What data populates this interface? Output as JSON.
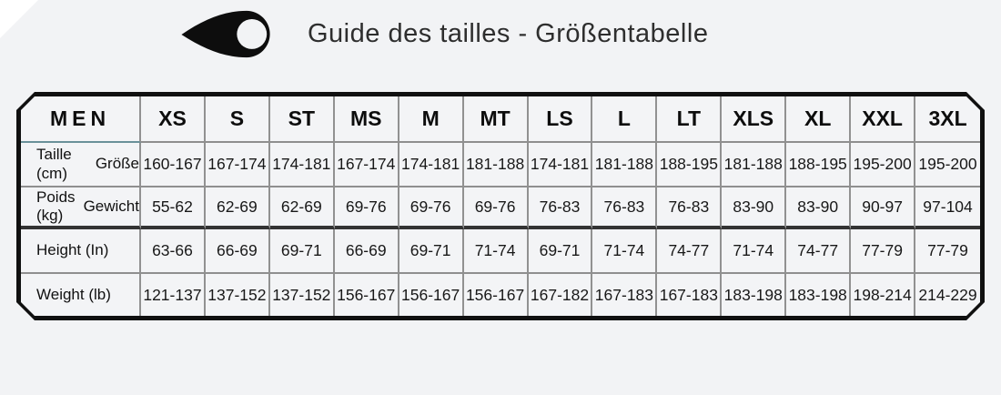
{
  "header": {
    "title": "Guide des tailles - Größentabelle",
    "logo_icon": "teardrop-comet-logo"
  },
  "colors": {
    "page_background": "#f2f3f5",
    "accent_teal": "#15545f",
    "frame_black": "#101010",
    "grid_gray": "#8f8f8f",
    "thick_divider": "#333333"
  },
  "table": {
    "group_label": "MEN",
    "columns": [
      "XS",
      "S",
      "ST",
      "MS",
      "M",
      "MT",
      "LS",
      "L",
      "LT",
      "XLS",
      "XL",
      "XXL",
      "3XL"
    ],
    "rows": [
      {
        "label_lines": [
          "Taille (cm)",
          "Größe"
        ],
        "values": [
          "160-167",
          "167-174",
          "174-181",
          "167-174",
          "174-181",
          "181-188",
          "174-181",
          "181-188",
          "188-195",
          "181-188",
          "188-195",
          "195-200",
          "195-200"
        ]
      },
      {
        "label_lines": [
          "Poids (kg)",
          "Gewicht"
        ],
        "values": [
          "55-62",
          "62-69",
          "62-69",
          "69-76",
          "69-76",
          "69-76",
          "76-83",
          "76-83",
          "76-83",
          "83-90",
          "83-90",
          "90-97",
          "97-104"
        ],
        "thick_divider_below": true
      },
      {
        "label_lines": [
          "Height (In)"
        ],
        "values": [
          "63-66",
          "66-69",
          "69-71",
          "66-69",
          "69-71",
          "71-74",
          "69-71",
          "71-74",
          "74-77",
          "71-74",
          "74-77",
          "77-79",
          "77-79"
        ]
      },
      {
        "label_lines": [
          "Weight (lb)"
        ],
        "values": [
          "121-137",
          "137-152",
          "137-152",
          "156-167",
          "156-167",
          "156-167",
          "167-182",
          "167-183",
          "167-183",
          "183-198",
          "183-198",
          "198-214",
          "214-229"
        ]
      }
    ]
  },
  "chart_data": {
    "type": "table",
    "title": "Guide des tailles - Größentabelle",
    "categories": [
      "XS",
      "S",
      "ST",
      "MS",
      "M",
      "MT",
      "LS",
      "L",
      "LT",
      "XLS",
      "XL",
      "XXL",
      "3XL"
    ],
    "series": [
      {
        "name": "Taille (cm) / Größe",
        "values": [
          "160-167",
          "167-174",
          "174-181",
          "167-174",
          "174-181",
          "181-188",
          "174-181",
          "181-188",
          "188-195",
          "181-188",
          "188-195",
          "195-200",
          "195-200"
        ]
      },
      {
        "name": "Poids (kg) / Gewicht",
        "values": [
          "55-62",
          "62-69",
          "62-69",
          "69-76",
          "69-76",
          "69-76",
          "76-83",
          "76-83",
          "76-83",
          "83-90",
          "83-90",
          "90-97",
          "97-104"
        ]
      },
      {
        "name": "Height (In)",
        "values": [
          "63-66",
          "66-69",
          "69-71",
          "66-69",
          "69-71",
          "71-74",
          "69-71",
          "71-74",
          "74-77",
          "71-74",
          "74-77",
          "77-79",
          "77-79"
        ]
      },
      {
        "name": "Weight (lb)",
        "values": [
          "121-137",
          "137-152",
          "137-152",
          "156-167",
          "156-167",
          "156-167",
          "167-182",
          "167-183",
          "167-183",
          "183-198",
          "183-198",
          "198-214",
          "214-229"
        ]
      }
    ]
  }
}
